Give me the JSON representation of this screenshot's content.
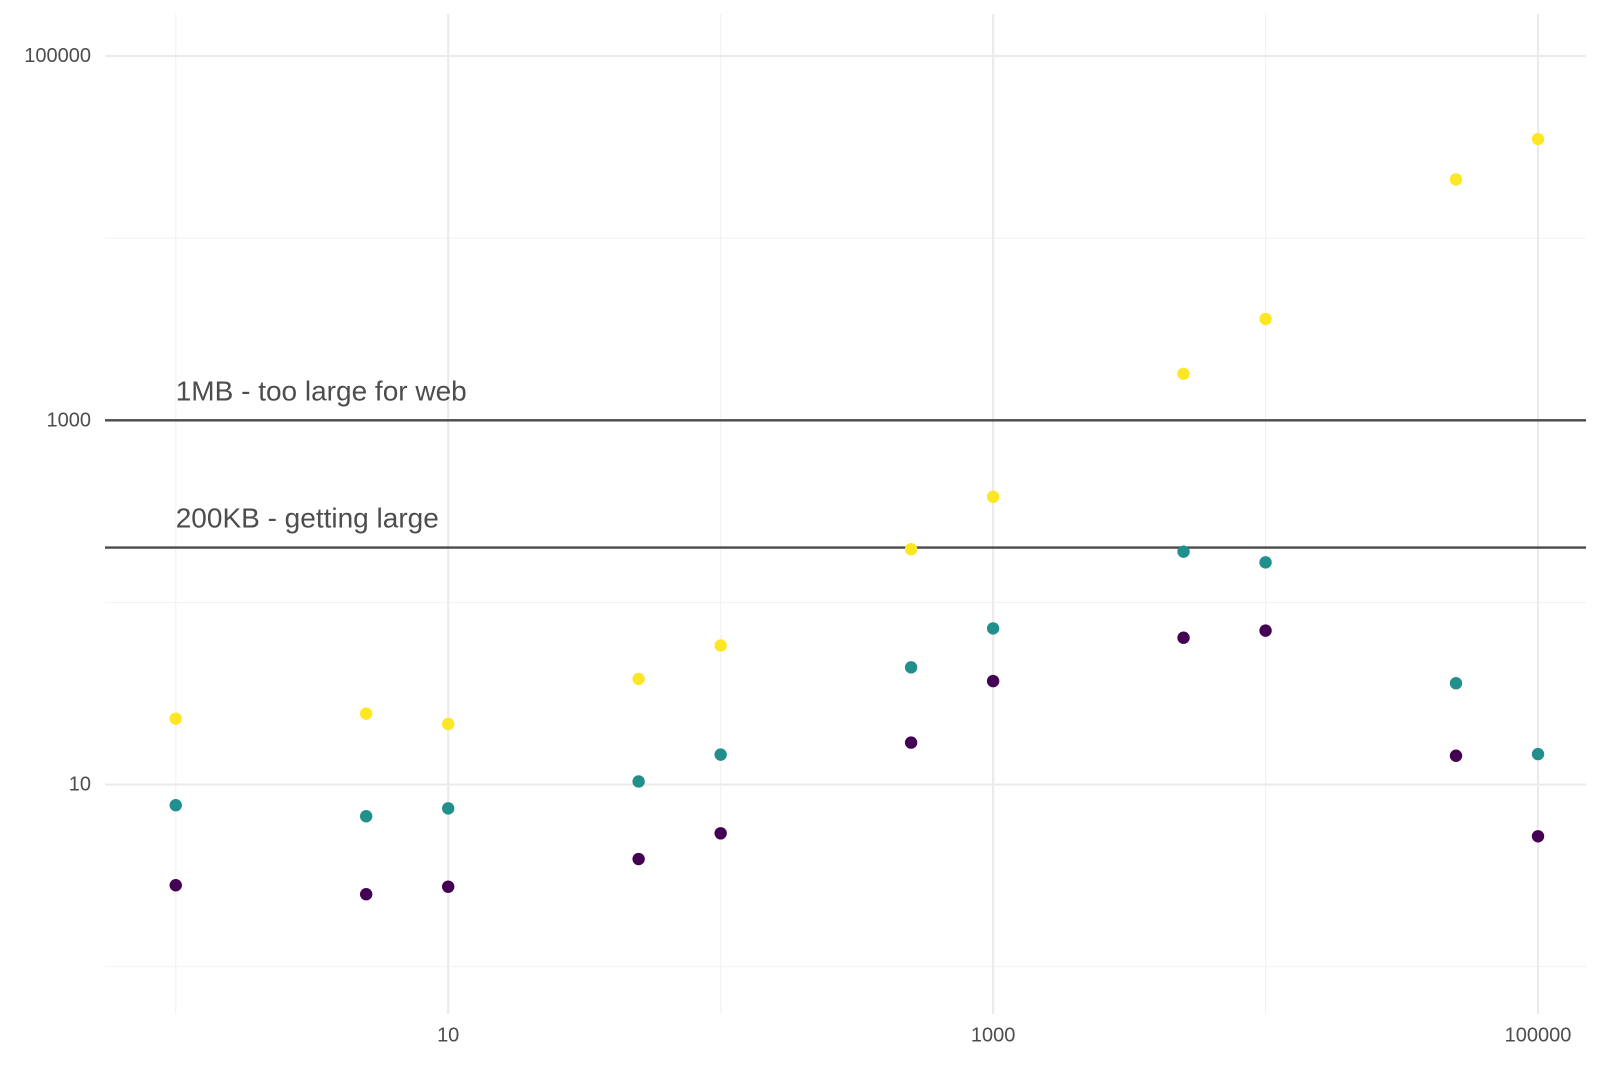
{
  "chart_data": {
    "type": "scatter",
    "title": "",
    "xlabel": "",
    "ylabel": "",
    "x_scale": "log10",
    "y_scale": "log10",
    "xlim": [
      0.55,
      150000
    ],
    "ylim": [
      0.55,
      170000
    ],
    "x_ticks": [
      10,
      1000,
      100000
    ],
    "x_tick_labels": [
      "10",
      "1000",
      "100000"
    ],
    "y_ticks": [
      10,
      1000,
      100000
    ],
    "y_tick_labels": [
      "10",
      "1000",
      "100000"
    ],
    "grid": true,
    "legend": "none",
    "reference_lines": [
      {
        "y": 1000,
        "label": "1MB - too large for web"
      },
      {
        "y": 200,
        "label": "200KB - getting large"
      }
    ],
    "series": [
      {
        "color": "#440154",
        "x": [
          1,
          5,
          10,
          50,
          100,
          500,
          1000,
          5000,
          10000,
          50000,
          100000
        ],
        "y": [
          2.8,
          2.5,
          2.75,
          3.9,
          5.4,
          17,
          37,
          64,
          70,
          14.4,
          5.2
        ]
      },
      {
        "color": "#21908C",
        "x": [
          1,
          5,
          10,
          50,
          100,
          500,
          1000,
          5000,
          10000,
          50000,
          100000
        ],
        "y": [
          7.7,
          6.7,
          7.4,
          10.4,
          14.6,
          44,
          72,
          190,
          166,
          36,
          14.7
        ]
      },
      {
        "color": "#FDE725",
        "x": [
          1,
          5,
          10,
          50,
          100,
          500,
          1000,
          5000,
          10000,
          50000,
          100000
        ],
        "y": [
          23,
          24.5,
          21.5,
          38,
          58,
          196,
          380,
          1800,
          3600,
          21000,
          35000
        ]
      }
    ]
  }
}
